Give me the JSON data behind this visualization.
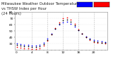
{
  "title_left": "Milwaukee Weather Outdoor Temperature",
  "title_mid": "vs THSW Index per Hour",
  "title_right": "(24 Hours)",
  "legend_colors": [
    "#0000ff",
    "#ff0000"
  ],
  "hours": [
    0,
    1,
    2,
    3,
    4,
    5,
    6,
    7,
    8,
    9,
    10,
    11,
    12,
    13,
    14,
    15,
    16,
    17,
    18,
    19,
    20,
    21,
    22,
    23
  ],
  "outdoor_temp": [
    30,
    29,
    28,
    28,
    27,
    27,
    28,
    31,
    38,
    46,
    54,
    60,
    64,
    65,
    62,
    57,
    51,
    46,
    41,
    38,
    36,
    35,
    34,
    33
  ],
  "thsw_index": [
    25,
    24,
    23,
    23,
    22,
    22,
    23,
    27,
    35,
    45,
    55,
    64,
    70,
    72,
    68,
    61,
    53,
    46,
    40,
    36,
    33,
    32,
    31,
    30
  ],
  "black_series": [
    28,
    27,
    26,
    26,
    25,
    25,
    26,
    29,
    36,
    45,
    54,
    62,
    67,
    68,
    65,
    59,
    52,
    46,
    40,
    37,
    34,
    33,
    32,
    31
  ],
  "ylim": [
    20,
    80
  ],
  "xlim": [
    -0.5,
    23.5
  ],
  "bg_color": "#ffffff",
  "plot_bg": "#ffffff",
  "grid_color": "#bbbbbb",
  "title_fontsize": 3.8,
  "tick_fontsize": 3.2,
  "marker_size": 1.5,
  "dashed_grid_positions": [
    4,
    8,
    12,
    16,
    20
  ],
  "yticks": [
    30,
    40,
    50,
    60,
    70,
    80
  ],
  "xtick_labels": [
    "0",
    "",
    "",
    "",
    "4",
    "",
    "",
    "",
    "8",
    "",
    "",
    "",
    "12",
    "",
    "",
    "",
    "16",
    "",
    "",
    "",
    "20",
    "",
    "",
    ""
  ]
}
